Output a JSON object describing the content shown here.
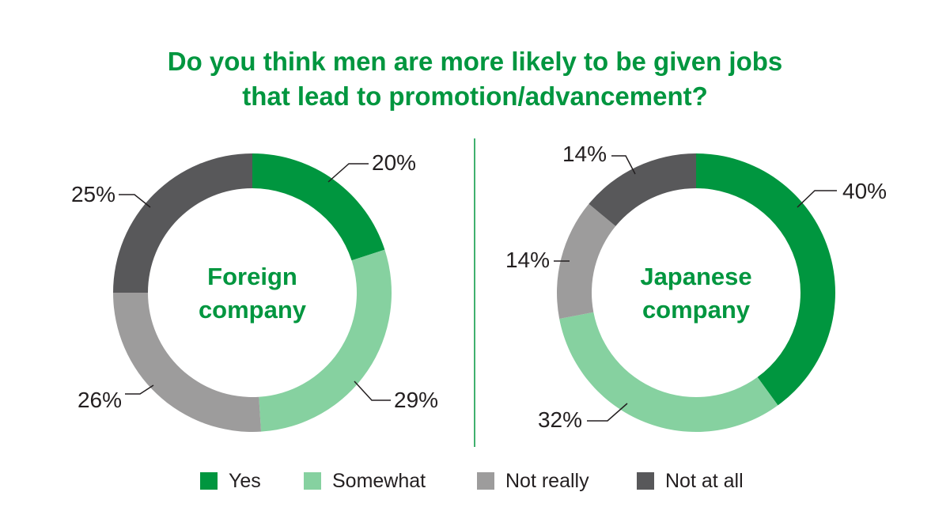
{
  "title_lines": [
    "Do you think men are more likely to be given jobs",
    "that lead to promotion/advancement?"
  ],
  "colors": {
    "title": "#00963f",
    "yes": "#00963f",
    "somewhat": "#86d1a0",
    "not_really": "#9d9c9c",
    "not_at_all": "#58585a",
    "divider": "#00963f",
    "text": "#231f20",
    "center_label": "#00963f"
  },
  "legend": [
    {
      "label": "Yes",
      "color": "#00963f"
    },
    {
      "label": "Somewhat",
      "color": "#86d1a0"
    },
    {
      "label": "Not really",
      "color": "#9d9c9c"
    },
    {
      "label": "Not at all",
      "color": "#58585a"
    }
  ],
  "chart_data": [
    {
      "type": "pie",
      "donut": true,
      "center_label": [
        "Foreign",
        "company"
      ],
      "categories": [
        "Yes",
        "Somewhat",
        "Not really",
        "Not at all"
      ],
      "values": [
        20,
        29,
        26,
        25
      ],
      "labels": [
        "20%",
        "29%",
        "26%",
        "25%"
      ]
    },
    {
      "type": "pie",
      "donut": true,
      "center_label": [
        "Japanese",
        "company"
      ],
      "categories": [
        "Yes",
        "Somewhat",
        "Not really",
        "Not at all"
      ],
      "values": [
        40,
        32,
        14,
        14
      ],
      "labels": [
        "40%",
        "32%",
        "14%",
        "14%"
      ]
    }
  ]
}
